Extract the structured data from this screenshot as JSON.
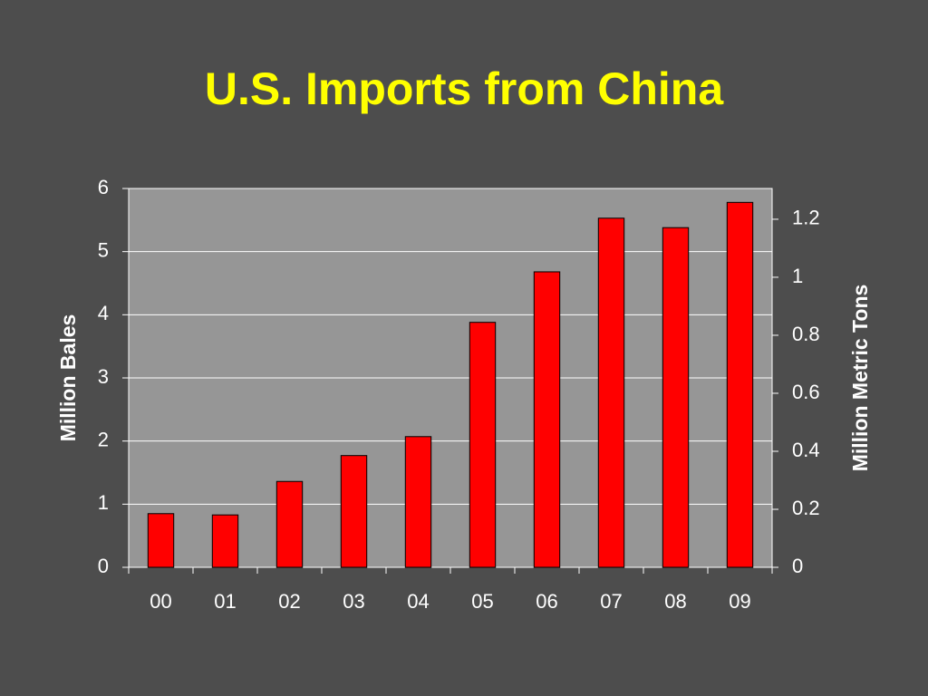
{
  "chart_data": {
    "type": "bar",
    "title": "U.S. Imports from China",
    "categories": [
      "00",
      "01",
      "02",
      "03",
      "04",
      "05",
      "06",
      "07",
      "08",
      "09"
    ],
    "values": [
      0.85,
      0.83,
      1.36,
      1.77,
      2.07,
      3.88,
      4.68,
      5.53,
      5.38,
      5.78
    ],
    "color": "#ff0000",
    "y_label": "Million Bales",
    "y2_label": "Million Metric Tons",
    "ylim": [
      0,
      6
    ],
    "yticks": [
      0,
      1,
      2,
      3,
      4,
      5,
      6
    ],
    "y2lim": [
      0,
      1.306
    ],
    "y2ticks": [
      0,
      0.2,
      0.4,
      0.6,
      0.8,
      1,
      1.2
    ],
    "grid": true
  }
}
